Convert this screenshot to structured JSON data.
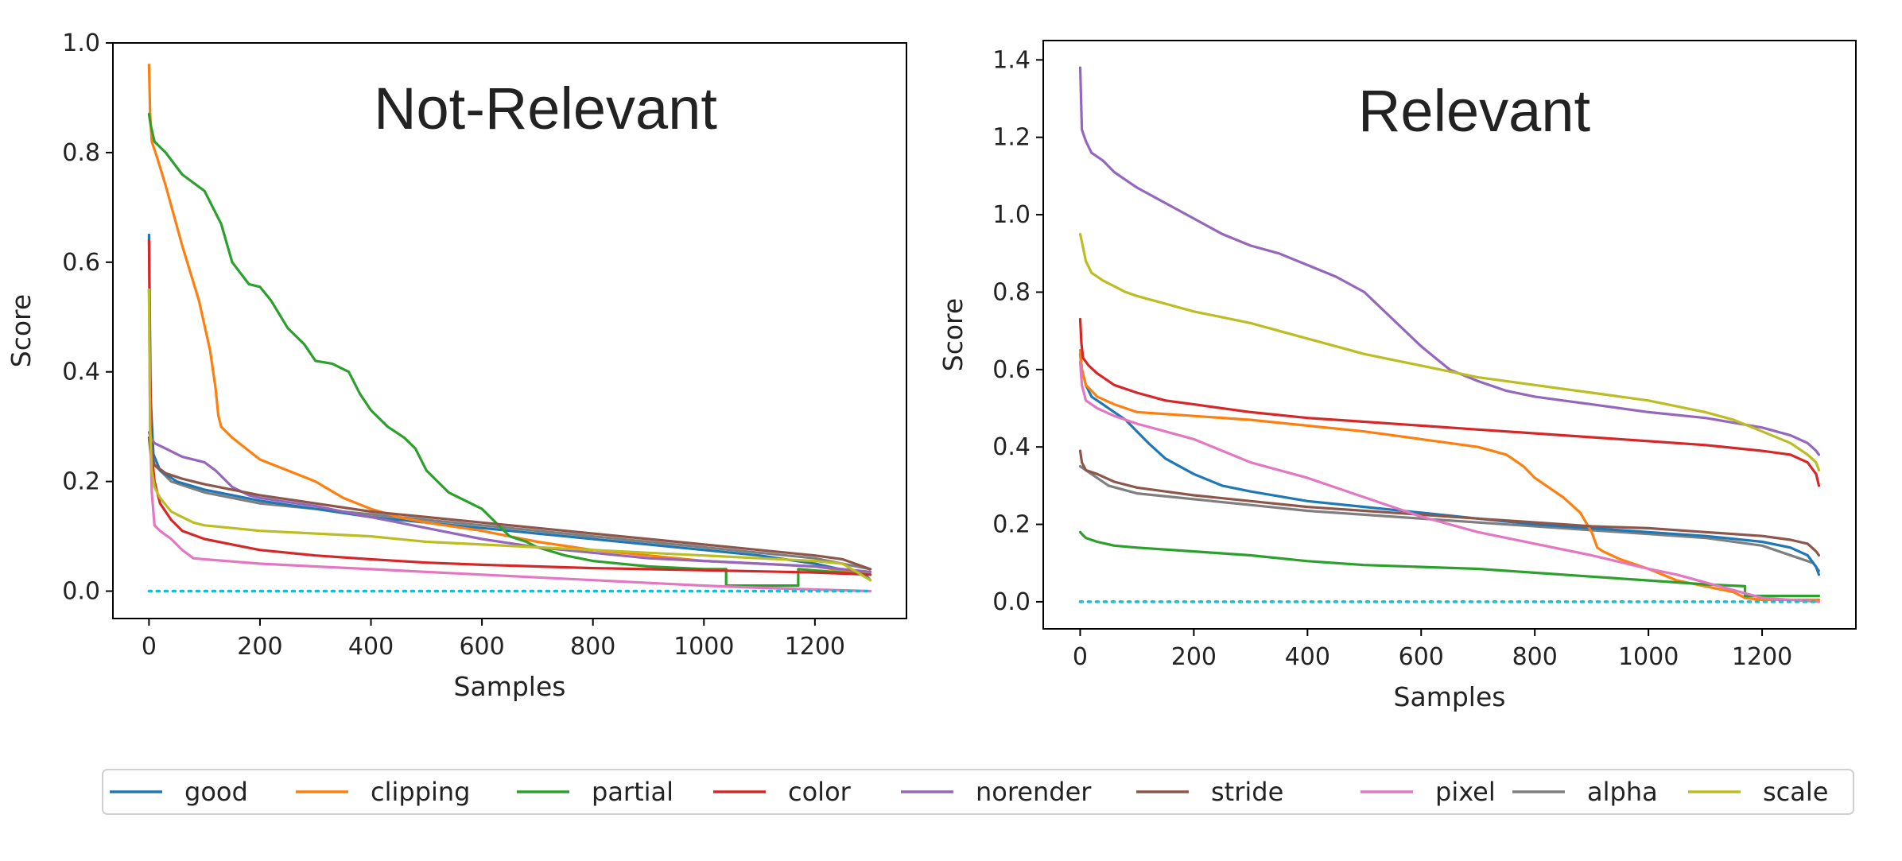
{
  "legend": {
    "items": [
      {
        "name": "good",
        "color": "#1f77b4"
      },
      {
        "name": "clipping",
        "color": "#ff7f0e"
      },
      {
        "name": "partial",
        "color": "#2ca02c"
      },
      {
        "name": "color",
        "color": "#d62728"
      },
      {
        "name": "norender",
        "color": "#9467bd"
      },
      {
        "name": "stride",
        "color": "#8c564b"
      },
      {
        "name": "pixel",
        "color": "#e377c2"
      },
      {
        "name": "alpha",
        "color": "#7f7f7f"
      },
      {
        "name": "scale",
        "color": "#bcbd22"
      }
    ]
  },
  "chart_data": [
    {
      "type": "line",
      "title": "Not-Relevant",
      "xlabel": "Samples",
      "ylabel": "Score",
      "xlim": [
        -65,
        1365
      ],
      "ylim": [
        -0.05,
        1.0
      ],
      "xticks": [
        0,
        200,
        400,
        600,
        800,
        1000,
        1200
      ],
      "yticks": [
        0.0,
        0.2,
        0.4,
        0.6,
        0.8,
        1.0
      ],
      "ytick_labels": [
        "0.0",
        "0.2",
        "0.4",
        "0.6",
        "0.8",
        "1.0"
      ],
      "baseline": {
        "name": "baseline",
        "y": 0.0,
        "x": [
          0,
          1300
        ],
        "color": "#17becf",
        "style": "dotted"
      },
      "series": [
        {
          "name": "alpha",
          "color": "#7f7f7f",
          "x": [
            0,
            3,
            10,
            40,
            100,
            200,
            400,
            600,
            800,
            1000,
            1200,
            1300
          ],
          "y": [
            0.28,
            0.26,
            0.23,
            0.2,
            0.18,
            0.16,
            0.14,
            0.12,
            0.1,
            0.08,
            0.06,
            0.04
          ]
        },
        {
          "name": "good",
          "color": "#1f77b4",
          "x": [
            0,
            3,
            8,
            20,
            50,
            100,
            200,
            300,
            400,
            500,
            600,
            700,
            800,
            900,
            1000,
            1100,
            1200,
            1290,
            1300
          ],
          "y": [
            0.65,
            0.35,
            0.25,
            0.22,
            0.2,
            0.185,
            0.165,
            0.15,
            0.135,
            0.125,
            0.115,
            0.105,
            0.095,
            0.085,
            0.075,
            0.065,
            0.05,
            0.03,
            0.02
          ]
        },
        {
          "name": "clipping",
          "color": "#ff7f0e",
          "x": [
            0,
            2,
            5,
            15,
            30,
            60,
            90,
            110,
            120,
            125,
            130,
            150,
            200,
            250,
            300,
            350,
            400,
            450,
            500,
            600,
            700,
            800,
            900,
            1000,
            1100,
            1200,
            1300
          ],
          "y": [
            0.96,
            0.87,
            0.82,
            0.79,
            0.74,
            0.63,
            0.53,
            0.44,
            0.37,
            0.32,
            0.3,
            0.28,
            0.24,
            0.22,
            0.2,
            0.17,
            0.15,
            0.135,
            0.125,
            0.11,
            0.09,
            0.075,
            0.065,
            0.055,
            0.05,
            0.045,
            0.03
          ]
        },
        {
          "name": "partial",
          "color": "#2ca02c",
          "x": [
            0,
            3,
            10,
            30,
            60,
            100,
            130,
            150,
            180,
            200,
            220,
            250,
            280,
            300,
            330,
            360,
            380,
            400,
            430,
            460,
            480,
            500,
            520,
            540,
            560,
            600,
            630,
            650,
            680,
            700,
            750,
            800,
            900,
            1000,
            1040,
            1040,
            1170,
            1170,
            1300
          ],
          "y": [
            0.87,
            0.85,
            0.82,
            0.8,
            0.76,
            0.73,
            0.67,
            0.6,
            0.56,
            0.555,
            0.53,
            0.48,
            0.45,
            0.42,
            0.415,
            0.4,
            0.36,
            0.33,
            0.3,
            0.28,
            0.26,
            0.22,
            0.2,
            0.18,
            0.17,
            0.15,
            0.12,
            0.1,
            0.09,
            0.08,
            0.065,
            0.055,
            0.045,
            0.04,
            0.04,
            0.01,
            0.01,
            0.04,
            0.03
          ]
        },
        {
          "name": "color",
          "color": "#d62728",
          "x": [
            0,
            2,
            5,
            10,
            20,
            40,
            60,
            100,
            150,
            200,
            300,
            400,
            500,
            600,
            700,
            800,
            900,
            1000,
            1100,
            1200,
            1300
          ],
          "y": [
            0.64,
            0.4,
            0.25,
            0.2,
            0.16,
            0.13,
            0.11,
            0.095,
            0.085,
            0.075,
            0.065,
            0.058,
            0.052,
            0.048,
            0.045,
            0.042,
            0.04,
            0.038,
            0.036,
            0.034,
            0.03
          ]
        },
        {
          "name": "norender",
          "color": "#9467bd",
          "x": [
            0,
            3,
            10,
            30,
            60,
            100,
            120,
            150,
            180,
            200,
            300,
            400,
            500,
            600,
            700,
            800,
            900,
            1000,
            1100,
            1200,
            1300
          ],
          "y": [
            0.29,
            0.28,
            0.27,
            0.26,
            0.245,
            0.235,
            0.22,
            0.19,
            0.175,
            0.17,
            0.155,
            0.135,
            0.115,
            0.095,
            0.08,
            0.07,
            0.06,
            0.055,
            0.05,
            0.045,
            0.035
          ]
        },
        {
          "name": "stride",
          "color": "#8c564b",
          "x": [
            0,
            3,
            10,
            30,
            60,
            100,
            200,
            300,
            400,
            500,
            600,
            700,
            800,
            900,
            1000,
            1100,
            1200,
            1250,
            1300
          ],
          "y": [
            0.28,
            0.25,
            0.23,
            0.215,
            0.205,
            0.195,
            0.175,
            0.16,
            0.145,
            0.135,
            0.125,
            0.115,
            0.105,
            0.095,
            0.085,
            0.075,
            0.065,
            0.058,
            0.04
          ]
        },
        {
          "name": "pixel",
          "color": "#e377c2",
          "x": [
            0,
            2,
            5,
            10,
            20,
            40,
            60,
            80,
            100,
            200,
            300,
            400,
            500,
            600,
            700,
            800,
            900,
            1000,
            1100,
            1200,
            1300
          ],
          "y": [
            0.55,
            0.3,
            0.18,
            0.12,
            0.11,
            0.095,
            0.075,
            0.06,
            0.058,
            0.05,
            0.045,
            0.04,
            0.035,
            0.03,
            0.025,
            0.02,
            0.015,
            0.01,
            0.006,
            0.003,
            0.0
          ]
        },
        {
          "name": "scale",
          "color": "#bcbd22",
          "x": [
            0,
            2,
            5,
            10,
            20,
            40,
            60,
            80,
            100,
            150,
            200,
            300,
            400,
            500,
            600,
            700,
            800,
            900,
            1000,
            1100,
            1200,
            1250,
            1300
          ],
          "y": [
            0.55,
            0.3,
            0.22,
            0.19,
            0.17,
            0.145,
            0.135,
            0.125,
            0.12,
            0.115,
            0.11,
            0.105,
            0.1,
            0.09,
            0.085,
            0.08,
            0.075,
            0.07,
            0.065,
            0.06,
            0.055,
            0.05,
            0.02
          ]
        }
      ]
    },
    {
      "type": "line",
      "title": "Relevant",
      "xlabel": "Samples",
      "ylabel": "Score",
      "xlim": [
        -65,
        1365
      ],
      "ylim": [
        -0.07,
        1.45
      ],
      "xticks": [
        0,
        200,
        400,
        600,
        800,
        1000,
        1200
      ],
      "yticks": [
        0.0,
        0.2,
        0.4,
        0.6,
        0.8,
        1.0,
        1.2,
        1.4
      ],
      "ytick_labels": [
        "0.0",
        "0.2",
        "0.4",
        "0.6",
        "0.8",
        "1.0",
        "1.2",
        "1.4"
      ],
      "baseline": {
        "name": "baseline",
        "y": 0.0,
        "x": [
          0,
          1300
        ],
        "color": "#17becf",
        "style": "dotted"
      },
      "series": [
        {
          "name": "alpha",
          "color": "#7f7f7f",
          "x": [
            0,
            10,
            50,
            100,
            200,
            300,
            400,
            500,
            600,
            700,
            800,
            900,
            1000,
            1100,
            1200,
            1290,
            1300
          ],
          "y": [
            0.35,
            0.34,
            0.3,
            0.28,
            0.265,
            0.25,
            0.235,
            0.225,
            0.215,
            0.205,
            0.195,
            0.185,
            0.175,
            0.165,
            0.145,
            0.1,
            0.08
          ]
        },
        {
          "name": "good",
          "color": "#1f77b4",
          "x": [
            0,
            3,
            10,
            20,
            40,
            60,
            80,
            100,
            120,
            150,
            200,
            250,
            300,
            400,
            500,
            600,
            700,
            800,
            900,
            1000,
            1100,
            1200,
            1250,
            1280,
            1295,
            1300
          ],
          "y": [
            0.64,
            0.6,
            0.56,
            0.53,
            0.51,
            0.49,
            0.47,
            0.44,
            0.41,
            0.37,
            0.33,
            0.3,
            0.285,
            0.26,
            0.245,
            0.23,
            0.215,
            0.2,
            0.19,
            0.18,
            0.17,
            0.155,
            0.14,
            0.12,
            0.09,
            0.07
          ]
        },
        {
          "name": "clipping",
          "color": "#ff7f0e",
          "x": [
            0,
            3,
            10,
            30,
            60,
            100,
            200,
            300,
            400,
            500,
            600,
            700,
            750,
            780,
            800,
            850,
            880,
            900,
            910,
            920,
            950,
            1000,
            1050,
            1100,
            1150,
            1170,
            1200,
            1300
          ],
          "y": [
            0.65,
            0.6,
            0.56,
            0.53,
            0.51,
            0.49,
            0.48,
            0.47,
            0.455,
            0.44,
            0.42,
            0.4,
            0.38,
            0.35,
            0.32,
            0.27,
            0.23,
            0.18,
            0.14,
            0.13,
            0.11,
            0.085,
            0.055,
            0.04,
            0.025,
            0.01,
            0.005,
            0.005
          ]
        },
        {
          "name": "partial",
          "color": "#2ca02c",
          "x": [
            0,
            3,
            10,
            30,
            60,
            100,
            200,
            300,
            400,
            500,
            600,
            700,
            800,
            900,
            1000,
            1100,
            1170,
            1170,
            1300
          ],
          "y": [
            0.18,
            0.175,
            0.165,
            0.155,
            0.145,
            0.14,
            0.13,
            0.12,
            0.105,
            0.095,
            0.09,
            0.085,
            0.075,
            0.065,
            0.055,
            0.045,
            0.04,
            0.015,
            0.015
          ]
        },
        {
          "name": "color",
          "color": "#d62728",
          "x": [
            0,
            2,
            5,
            15,
            30,
            60,
            100,
            150,
            200,
            300,
            400,
            500,
            600,
            700,
            800,
            900,
            1000,
            1100,
            1200,
            1250,
            1280,
            1295,
            1300
          ],
          "y": [
            0.73,
            0.67,
            0.63,
            0.61,
            0.59,
            0.56,
            0.54,
            0.52,
            0.51,
            0.49,
            0.475,
            0.465,
            0.455,
            0.445,
            0.435,
            0.425,
            0.415,
            0.405,
            0.39,
            0.38,
            0.36,
            0.33,
            0.3
          ]
        },
        {
          "name": "norender",
          "color": "#9467bd",
          "x": [
            0,
            3,
            10,
            20,
            40,
            60,
            80,
            100,
            150,
            200,
            250,
            300,
            350,
            400,
            450,
            500,
            550,
            600,
            650,
            700,
            750,
            800,
            850,
            900,
            1000,
            1100,
            1200,
            1250,
            1280,
            1295,
            1300
          ],
          "y": [
            1.38,
            1.22,
            1.19,
            1.16,
            1.14,
            1.11,
            1.09,
            1.07,
            1.03,
            0.99,
            0.95,
            0.92,
            0.9,
            0.87,
            0.84,
            0.8,
            0.73,
            0.66,
            0.6,
            0.57,
            0.545,
            0.53,
            0.52,
            0.51,
            0.49,
            0.475,
            0.45,
            0.43,
            0.41,
            0.39,
            0.38
          ]
        },
        {
          "name": "stride",
          "color": "#8c564b",
          "x": [
            0,
            3,
            10,
            30,
            60,
            100,
            150,
            200,
            300,
            400,
            500,
            600,
            700,
            800,
            900,
            1000,
            1100,
            1200,
            1250,
            1280,
            1295,
            1300
          ],
          "y": [
            0.39,
            0.36,
            0.34,
            0.33,
            0.31,
            0.295,
            0.285,
            0.275,
            0.26,
            0.245,
            0.235,
            0.225,
            0.215,
            0.205,
            0.195,
            0.19,
            0.18,
            0.17,
            0.16,
            0.15,
            0.13,
            0.12
          ]
        },
        {
          "name": "pixel",
          "color": "#e377c2",
          "x": [
            0,
            3,
            10,
            30,
            60,
            100,
            150,
            200,
            300,
            400,
            500,
            600,
            700,
            800,
            900,
            1000,
            1050,
            1100,
            1150,
            1200,
            1300
          ],
          "y": [
            0.62,
            0.56,
            0.52,
            0.5,
            0.48,
            0.46,
            0.44,
            0.42,
            0.36,
            0.32,
            0.27,
            0.22,
            0.18,
            0.15,
            0.12,
            0.085,
            0.07,
            0.05,
            0.03,
            0.01,
            0.0
          ]
        },
        {
          "name": "scale",
          "color": "#bcbd22",
          "x": [
            0,
            3,
            10,
            20,
            40,
            60,
            80,
            100,
            150,
            200,
            300,
            400,
            500,
            600,
            700,
            800,
            900,
            1000,
            1100,
            1150,
            1200,
            1250,
            1280,
            1295,
            1300
          ],
          "y": [
            0.95,
            0.93,
            0.88,
            0.85,
            0.83,
            0.815,
            0.8,
            0.79,
            0.77,
            0.75,
            0.72,
            0.68,
            0.64,
            0.61,
            0.58,
            0.56,
            0.54,
            0.52,
            0.49,
            0.47,
            0.44,
            0.41,
            0.38,
            0.36,
            0.34
          ]
        }
      ]
    }
  ]
}
